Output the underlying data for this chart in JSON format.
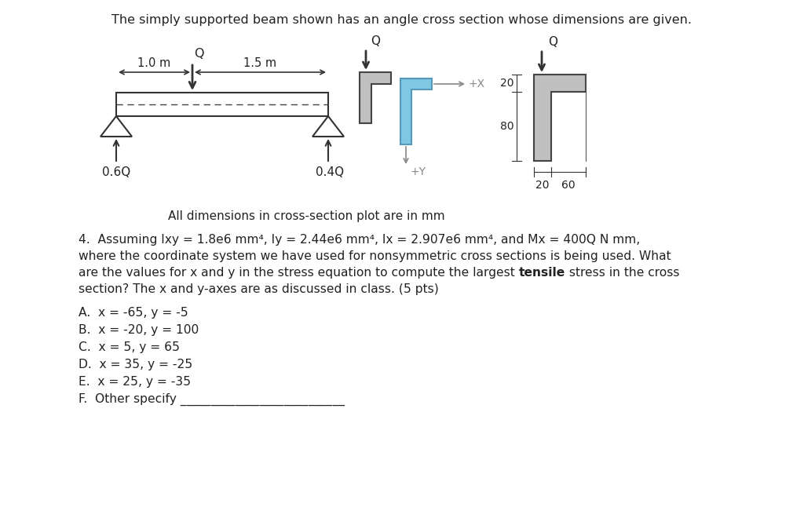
{
  "title": "The simply supported beam shown has an angle cross section whose dimensions are given.",
  "bg_color": "#ffffff",
  "question_line1": "4.  Assuming Ixy = 1.8e6 mm⁴, Iy = 2.44e6 mm⁴, Ix = 2.907e6 mm⁴, and Mx = 400Q N mm,",
  "question_line2": "where the coordinate system we have used for nonsymmetric cross sections is being used. What",
  "question_line3_pre": "are the values for x and y in the stress equation to compute the largest ",
  "question_line3_bold": "tensile",
  "question_line3_post": " stress in the cross",
  "question_line4": "section? The x and y-axes are as discussed in class. (5 pts)",
  "answers": [
    "A.  x = -65, y = -5",
    "B.  x = -20, y = 100",
    "C.  x = 5, y = 65",
    "D.  x = 35, y = -25",
    "E.  x = 25, y = -35",
    "F.  Other specify ___________________________"
  ],
  "caption": "All dimensions in cross-section plot are in mm",
  "beam_label_left": "1.0 m",
  "beam_label_right": "1.5 m",
  "beam_reaction_left": "0.6Q",
  "beam_reaction_right": "0.4Q",
  "beam_load_label": "Q",
  "cs1_gray": "#c0c0c0",
  "cs2_gray": "#c0c0c0",
  "cs_blue": "#7ec8e3",
  "dim_20_flange": "20",
  "dim_80_web": "80",
  "dim_20_bottom": "20",
  "dim_60_bottom": "60"
}
